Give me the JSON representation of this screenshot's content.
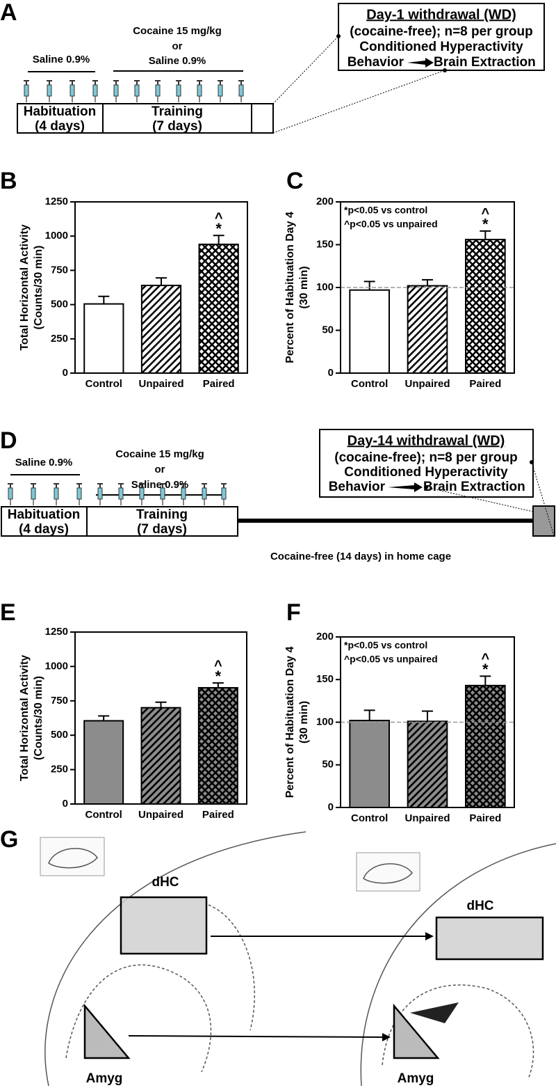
{
  "panel_labels": [
    "A",
    "B",
    "C",
    "D",
    "E",
    "F",
    "G"
  ],
  "timeline_a": {
    "saline": "Saline 0.9%",
    "cocaine": "Cocaine 15 mg/kg",
    "or": "or",
    "saline_training": "Saline 0.9%",
    "habituation": "Habituation",
    "habituation_days": "(4 days)",
    "training": "Training",
    "training_days": "(7 days)",
    "box_title": "Day-1 withdrawal (WD)",
    "box_lines": [
      "(cocaine-free); n=8 per group",
      "Conditioned Hyperactivity"
    ],
    "behavior": "Behavior",
    "extraction": "Brain Extraction"
  },
  "timeline_d": {
    "saline": "Saline 0.9%",
    "cocaine": "Cocaine 15 mg/kg",
    "or": "or",
    "saline_training": "Saline 0.9%",
    "habituation": "Habituation",
    "habituation_days": "(4 days)",
    "training": "Training",
    "training_days": "(7 days)",
    "home_cage": "Cocaine-free (14 days) in home cage",
    "box_title": "Day-14 withdrawal (WD)",
    "box_lines": [
      "(cocaine-free); n=8 per group",
      "Conditioned Hyperactivity"
    ],
    "behavior": "Behavior",
    "extraction": "Brain Extraction"
  },
  "brain": {
    "left": {
      "dhc": "dHC",
      "amyg": "Amyg"
    },
    "right": {
      "dhc": "dHC",
      "amyg": "Amyg"
    }
  },
  "chart_data": [
    {
      "type": "bar",
      "ylabel": [
        "Total Horizontal Activity",
        "(Counts/30 min)"
      ],
      "categories": [
        "Control",
        "Unpaired",
        "Paired"
      ],
      "values": [
        505,
        640,
        940
      ],
      "errors": [
        55,
        55,
        65
      ],
      "sig_star": [
        null,
        null,
        "*"
      ],
      "sig_caret": [
        null,
        null,
        "^"
      ],
      "patterns": [
        "none",
        "diagonal",
        "crosshatch"
      ],
      "color": "#ffffff",
      "ylim": [
        0,
        1250
      ],
      "yticks": [
        0,
        250,
        500,
        750,
        1000,
        1250
      ]
    },
    {
      "type": "bar",
      "ylabel": [
        "Percent of Habituation Day 4",
        "(30 min)"
      ],
      "categories": [
        "Control",
        "Unpaired",
        "Paired"
      ],
      "values": [
        97,
        102,
        156
      ],
      "errors": [
        10,
        7,
        10
      ],
      "sig_star": [
        null,
        null,
        "*"
      ],
      "sig_caret": [
        null,
        null,
        "^"
      ],
      "patterns": [
        "none",
        "diagonal",
        "crosshatch"
      ],
      "color": "#ffffff",
      "legend_text": [
        "*p<0.05 vs control",
        "^p<0.05 vs unpaired"
      ],
      "reference_line": 100,
      "ylim": [
        0,
        200
      ],
      "yticks": [
        0,
        50,
        100,
        150,
        200
      ]
    },
    {
      "type": "bar",
      "ylabel": [
        "Total Horizontal Activity",
        "(Counts/30 min)"
      ],
      "categories": [
        "Control",
        "Unpaired",
        "Paired"
      ],
      "values": [
        605,
        700,
        845
      ],
      "errors": [
        35,
        40,
        35
      ],
      "sig_star": [
        null,
        null,
        "*"
      ],
      "sig_caret": [
        null,
        null,
        "^"
      ],
      "patterns": [
        "none",
        "diagonal",
        "crosshatch"
      ],
      "color": "#8c8c8c",
      "ylim": [
        0,
        1250
      ],
      "yticks": [
        0,
        250,
        500,
        750,
        1000,
        1250
      ]
    },
    {
      "type": "bar",
      "ylabel": [
        "Percent of Habituation Day 4",
        "(30 min)"
      ],
      "categories": [
        "Control",
        "Unpaired",
        "Paired"
      ],
      "values": [
        102,
        101,
        143
      ],
      "errors": [
        12,
        12,
        11
      ],
      "sig_star": [
        null,
        null,
        "*"
      ],
      "sig_caret": [
        null,
        null,
        "^"
      ],
      "patterns": [
        "none",
        "diagonal",
        "crosshatch"
      ],
      "color": "#8c8c8c",
      "legend_text": [
        "*p<0.05 vs control",
        "^p<0.05 vs unpaired"
      ],
      "reference_line": 100,
      "ylim": [
        0,
        200
      ],
      "yticks": [
        0,
        50,
        100,
        150,
        200
      ]
    }
  ]
}
